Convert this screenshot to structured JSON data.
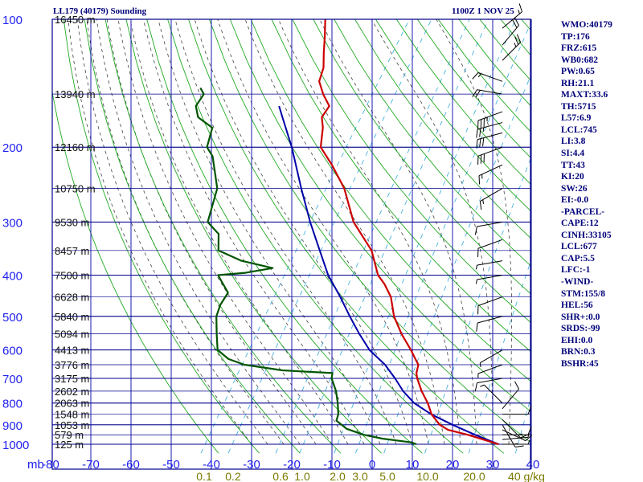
{
  "header": {
    "title": "LL179 (40179) Sounding",
    "datetime": "1100Z  1 NOV 25"
  },
  "indices": [
    "WMO:40179",
    "TP:176",
    "FRZ:615",
    "WB0:682",
    "PW:0.65",
    "RH:21.1",
    "MAXT:33.6",
    "TH:5715",
    "L57:6.9",
    "LCL:745",
    "LI:3.8",
    "SI:4.4",
    "TT:43",
    "KI:20",
    "SW:26",
    "EI:-0.0",
    "-PARCEL-",
    "CAPE:12",
    "CINH:33105",
    "LCL:677",
    "CAP:5.5",
    "LFC:-1",
    "-WIND-",
    "STM:155/8",
    "HEL:56",
    "SHR+:0.0",
    "SRDS:-99",
    "EHI:0.0",
    "BRN:0.3",
    "BSHR:45"
  ],
  "colors": {
    "frame": "#00008b",
    "isotherm": "#1a1ab0",
    "dry_adiabat": "#22aa22",
    "moist_adiabat": "#444444",
    "mixing_ratio": "#33aadd",
    "temperature": "#cc0000",
    "dewpoint": "#005500",
    "parcel": "#0000aa",
    "pressure_label": "#2222ee",
    "height_label": "#111111",
    "mixing_label": "#7a7a00",
    "wind": "#000000"
  },
  "chart_data": {
    "type": "skew-t log-p",
    "xlabel": "",
    "ylabel": "mb",
    "xlim": [
      -80,
      40
    ],
    "ylim": [
      1050,
      100
    ],
    "temperature_ticks": [
      "-80",
      "-70",
      "-60",
      "-50",
      "-40",
      "-30",
      "-20",
      "-10",
      "0",
      "10",
      "20",
      "30",
      "40"
    ],
    "pressure_ticks": [
      "100",
      "200",
      "300",
      "400",
      "500",
      "600",
      "700",
      "800",
      "900",
      "1000"
    ],
    "height_labels": [
      {
        "p": 100,
        "label": "16450 m"
      },
      {
        "p": 150,
        "label": "13940 m"
      },
      {
        "p": 200,
        "label": "12160 m"
      },
      {
        "p": 250,
        "label": "10750 m"
      },
      {
        "p": 300,
        "label": "9530 m"
      },
      {
        "p": 350,
        "label": "8457 m"
      },
      {
        "p": 400,
        "label": "7500 m"
      },
      {
        "p": 450,
        "label": "6628 m"
      },
      {
        "p": 500,
        "label": "5840 m"
      },
      {
        "p": 550,
        "label": "5094 m"
      },
      {
        "p": 600,
        "label": "4413 m"
      },
      {
        "p": 650,
        "label": "3776 m"
      },
      {
        "p": 700,
        "label": "3175 m"
      },
      {
        "p": 750,
        "label": "2602 m"
      },
      {
        "p": 800,
        "label": "2063 m"
      },
      {
        "p": 850,
        "label": "1548 m"
      },
      {
        "p": 900,
        "label": "1053 m"
      },
      {
        "p": 950,
        "label": "579 m"
      },
      {
        "p": 1000,
        "label": "125 m"
      }
    ],
    "mixing_ratio_labels": [
      "0.1",
      "0.2",
      "0.6",
      "1.0",
      "2.0",
      "3.0",
      "5.0",
      "10.0",
      "20.0",
      "40 g/kg"
    ],
    "series": [
      {
        "name": "temperature",
        "points": [
          [
            1000,
            31.5
          ],
          [
            975,
            26.9
          ],
          [
            950,
            22.2
          ],
          [
            925,
            16.5
          ],
          [
            900,
            13.6
          ],
          [
            850,
            9.8
          ],
          [
            800,
            7.0
          ],
          [
            750,
            3.5
          ],
          [
            700,
            0.3
          ],
          [
            680,
            -0.8
          ],
          [
            650,
            -1.7
          ],
          [
            630,
            -3.4
          ],
          [
            600,
            -6.0
          ],
          [
            550,
            -11.0
          ],
          [
            500,
            -15.8
          ],
          [
            450,
            -19.8
          ],
          [
            420,
            -23.5
          ],
          [
            400,
            -26.6
          ],
          [
            350,
            -32.3
          ],
          [
            300,
            -41.5
          ],
          [
            250,
            -49.4
          ],
          [
            220,
            -56.4
          ],
          [
            200,
            -62.1
          ],
          [
            180,
            -64.8
          ],
          [
            170,
            -66.8
          ],
          [
            160,
            -66.8
          ],
          [
            150,
            -70.3
          ],
          [
            140,
            -73.4
          ],
          [
            130,
            -74.6
          ],
          [
            120,
            -77.0
          ],
          [
            110,
            -79.4
          ],
          [
            100,
            -82.2
          ]
        ]
      },
      {
        "name": "dewpoint",
        "points": [
          [
            1000,
            11.0
          ],
          [
            990,
            9.5
          ],
          [
            970,
            1.6
          ],
          [
            950,
            -3.7
          ],
          [
            920,
            -8.9
          ],
          [
            880,
            -12.8
          ],
          [
            850,
            -13.4
          ],
          [
            800,
            -15.4
          ],
          [
            750,
            -17.8
          ],
          [
            700,
            -21.0
          ],
          [
            680,
            -21.7
          ],
          [
            670,
            -34.6
          ],
          [
            650,
            -45.0
          ],
          [
            630,
            -49.9
          ],
          [
            600,
            -54.1
          ],
          [
            550,
            -57.0
          ],
          [
            500,
            -60.0
          ],
          [
            470,
            -60.9
          ],
          [
            440,
            -61.0
          ],
          [
            400,
            -66.4
          ],
          [
            395,
            -60.0
          ],
          [
            385,
            -54.0
          ],
          [
            370,
            -63.0
          ],
          [
            350,
            -70.4
          ],
          [
            320,
            -73.1
          ],
          [
            300,
            -77.8
          ],
          [
            250,
            -81.0
          ],
          [
            210,
            -87.5
          ],
          [
            200,
            -90.4
          ],
          [
            180,
            -92.3
          ],
          [
            170,
            -97.6
          ],
          [
            160,
            -100.0
          ],
          [
            150,
            -100.0
          ],
          [
            145,
            -101.9
          ]
        ]
      },
      {
        "name": "parcel",
        "points": [
          [
            1000,
            31.5
          ],
          [
            950,
            24.0
          ],
          [
            900,
            16.8
          ],
          [
            850,
            9.7
          ],
          [
            800,
            3.6
          ],
          [
            750,
            -1.1
          ],
          [
            700,
            -5.2
          ],
          [
            650,
            -10.0
          ],
          [
            600,
            -16.3
          ],
          [
            550,
            -21.5
          ],
          [
            500,
            -26.8
          ],
          [
            450,
            -32.4
          ],
          [
            400,
            -39.0
          ],
          [
            350,
            -45.2
          ],
          [
            300,
            -52.3
          ],
          [
            250,
            -60.1
          ],
          [
            200,
            -69.3
          ],
          [
            170,
            -76.6
          ],
          [
            160,
            -79.3
          ]
        ]
      }
    ],
    "wind_barbs": [
      {
        "p": 1000,
        "dir": 90,
        "kt": 5
      },
      {
        "p": 975,
        "dir": 85,
        "kt": 5
      },
      {
        "p": 950,
        "dir": 90,
        "kt": 10
      },
      {
        "p": 925,
        "dir": 115,
        "kt": 10
      },
      {
        "p": 900,
        "dir": 150,
        "kt": 15
      },
      {
        "p": 875,
        "dir": 135,
        "kt": 15
      },
      {
        "p": 850,
        "dir": 90,
        "kt": 10
      },
      {
        "p": 825,
        "dir": 40,
        "kt": 10
      },
      {
        "p": 800,
        "dir": 315,
        "kt": 5
      },
      {
        "p": 700,
        "dir": 260,
        "kt": 10
      },
      {
        "p": 650,
        "dir": 250,
        "kt": 5
      },
      {
        "p": 600,
        "dir": 240,
        "kt": 5
      },
      {
        "p": 500,
        "dir": 255,
        "kt": 10
      },
      {
        "p": 450,
        "dir": 250,
        "kt": 10
      },
      {
        "p": 400,
        "dir": 260,
        "kt": 5
      },
      {
        "p": 370,
        "dir": 260,
        "kt": 5
      },
      {
        "p": 330,
        "dir": 250,
        "kt": 10
      },
      {
        "p": 300,
        "dir": 260,
        "kt": 10
      },
      {
        "p": 250,
        "dir": 240,
        "kt": 15
      },
      {
        "p": 220,
        "dir": 245,
        "kt": 15
      },
      {
        "p": 200,
        "dir": 250,
        "kt": 30
      },
      {
        "p": 185,
        "dir": 255,
        "kt": 30
      },
      {
        "p": 175,
        "dir": 255,
        "kt": 25
      },
      {
        "p": 165,
        "dir": 250,
        "kt": 35
      },
      {
        "p": 150,
        "dir": 280,
        "kt": 20
      },
      {
        "p": 140,
        "dir": 290,
        "kt": 15
      },
      {
        "p": 125,
        "dir": 45,
        "kt": 25
      },
      {
        "p": 115,
        "dir": 40,
        "kt": 20
      },
      {
        "p": 105,
        "dir": 50,
        "kt": 15
      }
    ]
  }
}
